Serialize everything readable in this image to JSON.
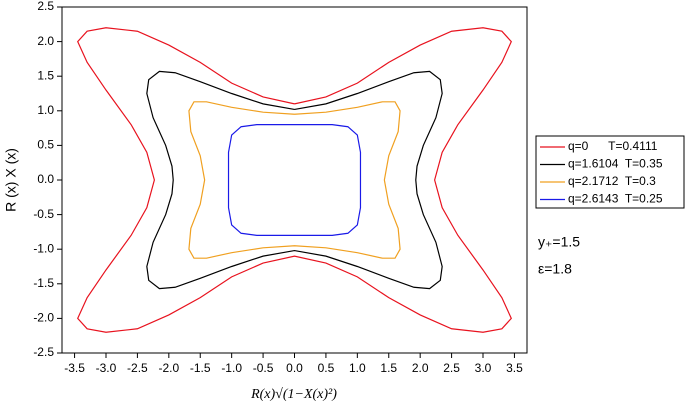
{
  "chart_data": {
    "type": "line",
    "xlabel": "R(x)√(1−X(x)²)",
    "ylabel": "R (x) X (x)",
    "xlim": [
      -3.7,
      3.7
    ],
    "ylim": [
      -2.5,
      2.5
    ],
    "xticks": [
      -3.5,
      {
        "value": -3,
        "label": "-3.0"
      },
      -2.5,
      {
        "value": -2,
        "label": "-2.0"
      },
      -1.5,
      {
        "value": -1,
        "label": "-1.0"
      },
      -0.5,
      {
        "value": 0,
        "label": "0.0"
      },
      0.5,
      {
        "value": 1,
        "label": "1.0"
      },
      1.5,
      {
        "value": 2,
        "label": "2.0"
      },
      2.5,
      {
        "value": 3,
        "label": "3.0"
      },
      3.5
    ],
    "yticks": [
      -2.5,
      {
        "value": -2,
        "label": "-2.0"
      },
      -1.5,
      {
        "value": -1,
        "label": "-1.0"
      },
      -0.5,
      {
        "value": 0,
        "label": "0.0"
      },
      0.5,
      {
        "value": 1,
        "label": "1.0"
      },
      1.5,
      {
        "value": 2,
        "label": "2.0"
      },
      2.5
    ],
    "annotations": [
      "y₊=1.5",
      "ε=1.8"
    ],
    "series": [
      {
        "name": "q=0      T=0.4111",
        "color": "#e8121e",
        "x": [
          0,
          0.5,
          1,
          1.5,
          2,
          2.5,
          3,
          3.3,
          3.45,
          3.3,
          3,
          2.6,
          2.35,
          2.23,
          2.35,
          2.6,
          3,
          3.3,
          3.45,
          3.3,
          3,
          2.5,
          2,
          1.5,
          1,
          0.5,
          0,
          -0.5,
          -1,
          -1.5,
          -2,
          -2.5,
          -3,
          -3.3,
          -3.45,
          -3.3,
          -3,
          -2.6,
          -2.35,
          -2.23,
          -2.35,
          -2.6,
          -3,
          -3.3,
          -3.45,
          -3.3,
          -3,
          -2.5,
          -2,
          -1.5,
          -1,
          -0.5,
          0
        ],
        "y": [
          1.1,
          1.2,
          1.4,
          1.7,
          1.95,
          2.15,
          2.2,
          2.15,
          2,
          1.7,
          1.3,
          0.8,
          0.4,
          0,
          -0.4,
          -0.8,
          -1.3,
          -1.7,
          -2,
          -2.15,
          -2.2,
          -2.15,
          -1.95,
          -1.7,
          -1.4,
          -1.2,
          -1.1,
          -1.2,
          -1.4,
          -1.7,
          -1.95,
          -2.15,
          -2.2,
          -2.15,
          -2,
          -1.7,
          -1.3,
          -0.8,
          -0.4,
          0,
          0.4,
          0.8,
          1.3,
          1.7,
          2,
          2.15,
          2.2,
          2.15,
          1.95,
          1.7,
          1.4,
          1.2,
          1.1
        ]
      },
      {
        "name": "q=1.6104  T=0.35",
        "color": "#000000",
        "x": [
          0,
          0.5,
          1,
          1.5,
          1.9,
          2.15,
          2.32,
          2.35,
          2.25,
          2.05,
          1.95,
          1.93,
          1.95,
          2.05,
          2.25,
          2.35,
          2.32,
          2.15,
          1.9,
          1.5,
          1,
          0.5,
          0,
          -0.5,
          -1,
          -1.5,
          -1.9,
          -2.15,
          -2.32,
          -2.35,
          -2.25,
          -2.05,
          -1.95,
          -1.93,
          -1.95,
          -2.05,
          -2.25,
          -2.35,
          -2.32,
          -2.15,
          -1.9,
          -1.5,
          -1,
          -0.5,
          0
        ],
        "y": [
          1.02,
          1.1,
          1.25,
          1.42,
          1.55,
          1.57,
          1.45,
          1.25,
          0.9,
          0.5,
          0.2,
          0,
          -0.2,
          -0.5,
          -0.9,
          -1.25,
          -1.45,
          -1.57,
          -1.55,
          -1.42,
          -1.25,
          -1.1,
          -1.02,
          -1.1,
          -1.25,
          -1.42,
          -1.55,
          -1.57,
          -1.45,
          -1.25,
          -0.9,
          -0.5,
          -0.2,
          0,
          0.2,
          0.5,
          0.9,
          1.25,
          1.45,
          1.57,
          1.55,
          1.42,
          1.25,
          1.1,
          1.02
        ]
      },
      {
        "name": "q=2.1712  T=0.3",
        "color": "#f0a020",
        "x": [
          0,
          0.5,
          1,
          1.4,
          1.6,
          1.68,
          1.65,
          1.5,
          1.43,
          1.5,
          1.65,
          1.68,
          1.6,
          1.4,
          1,
          0.5,
          0,
          -0.5,
          -1,
          -1.4,
          -1.6,
          -1.68,
          -1.65,
          -1.5,
          -1.43,
          -1.5,
          -1.65,
          -1.68,
          -1.6,
          -1.4,
          -1,
          -0.5,
          0
        ],
        "y": [
          0.95,
          0.98,
          1.05,
          1.13,
          1.13,
          1,
          0.7,
          0.35,
          0,
          -0.35,
          -0.7,
          -1,
          -1.13,
          -1.13,
          -1.05,
          -0.98,
          -0.95,
          -0.98,
          -1.05,
          -1.13,
          -1.13,
          -1,
          -0.7,
          -0.35,
          0,
          0.35,
          0.7,
          1,
          1.13,
          1.13,
          1.05,
          0.98,
          0.95
        ]
      },
      {
        "name": "q=2.6143  T=0.25",
        "color": "#1a1ae8",
        "x": [
          0,
          0.6,
          0.85,
          1,
          1.05,
          1.05,
          1.05,
          1,
          0.85,
          0.6,
          0,
          -0.6,
          -0.85,
          -1,
          -1.05,
          -1.05,
          -1.05,
          -1,
          -0.85,
          -0.6,
          0
        ],
        "y": [
          0.8,
          0.8,
          0.77,
          0.65,
          0.4,
          0,
          -0.4,
          -0.65,
          -0.77,
          -0.8,
          -0.8,
          -0.8,
          -0.77,
          -0.65,
          -0.4,
          0,
          0.4,
          0.65,
          0.77,
          0.8,
          0.8
        ]
      }
    ]
  }
}
